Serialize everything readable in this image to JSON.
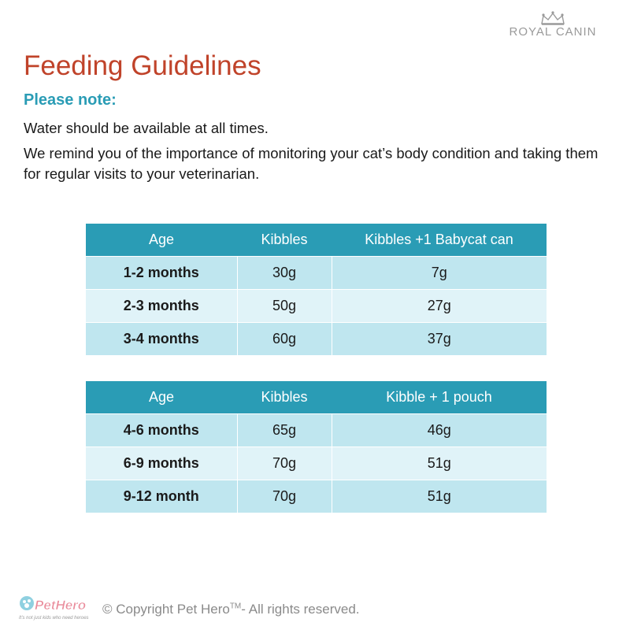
{
  "brand": {
    "name": "ROYAL CANIN",
    "icon": "crown-icon"
  },
  "title": "Feeding Guidelines",
  "subtitle": "Please note:",
  "paragraphs": [
    "Water should be available at all times.",
    "We remind you of the importance of monitoring your cat’s body condition and taking them for regular visits to your veterinarian."
  ],
  "tables": [
    {
      "headers": [
        "Age",
        "Kibbles",
        "Kibbles +1 Babycat can"
      ],
      "rows": [
        [
          "1-2 months",
          "30g",
          "7g"
        ],
        [
          "2-3 months",
          "50g",
          "27g"
        ],
        [
          "3-4 months",
          "60g",
          "37g"
        ]
      ]
    },
    {
      "headers": [
        "Age",
        "Kibbles",
        "Kibble + 1 pouch"
      ],
      "rows": [
        [
          "4-6 months",
          "65g",
          "46g"
        ],
        [
          "6-9 months",
          "70g",
          "51g"
        ],
        [
          "9-12 month",
          "70g",
          "51g"
        ]
      ]
    }
  ],
  "footer": {
    "logo_text": "PetHero",
    "tagline": "It's not just kids who need heroes",
    "copyright_prefix": "© Copyright Pet Hero",
    "copyright_sup": "TM",
    "copyright_suffix": "- All rights reserved."
  },
  "colors": {
    "title": "#c0432a",
    "accent": "#2a9cb5",
    "row_dark": "#bfe6ef",
    "row_light": "#e0f3f8"
  }
}
